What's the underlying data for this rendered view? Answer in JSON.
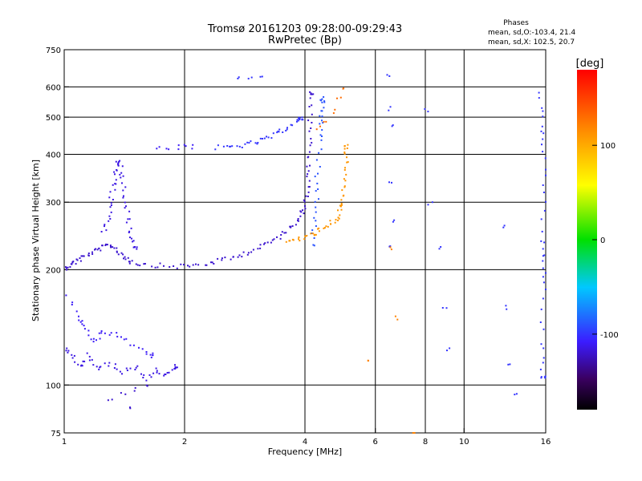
{
  "title": "Tromsø 20161203 09:28:00-09:29:43",
  "subtitle": "RwPretec (Bp)",
  "phases_box": {
    "heading": "Phases",
    "line1": "mean, sd,O:-103.4, 21.4",
    "line2": "mean, sd,X: 102.5, 20.7"
  },
  "colorbar": {
    "unit": "[deg]",
    "range": [
      -180,
      180
    ],
    "ticks": [
      {
        "label": "100",
        "value": 100
      },
      {
        "label": "0",
        "value": 0
      },
      {
        "label": "-100",
        "value": -100
      }
    ]
  },
  "chart_data": {
    "type": "scatter",
    "title": "Tromsø 20161203 09:28:00-09:29:43",
    "subtitle": "RwPretec (Bp)",
    "xlabel": "Frequency [MHz]",
    "ylabel": "Stationary phase Virtual Height [km]",
    "x_scale": "log",
    "y_scale": "log",
    "xlim": [
      1,
      16
    ],
    "ylim": [
      75,
      750
    ],
    "x_ticks": [
      {
        "label": "1",
        "value": 1
      },
      {
        "label": "2",
        "value": 2
      },
      {
        "label": "4",
        "value": 4
      },
      {
        "label": "6",
        "value": 6
      },
      {
        "label": "8",
        "value": 8
      },
      {
        "label": "10",
        "value": 10
      },
      {
        "label": "16",
        "value": 16
      }
    ],
    "y_ticks": [
      {
        "label": "75",
        "value": 75
      },
      {
        "label": "100",
        "value": 100
      },
      {
        "label": "200",
        "value": 200
      },
      {
        "label": "300",
        "value": 300
      },
      {
        "label": "400",
        "value": 400
      },
      {
        "label": "500",
        "value": 500
      },
      {
        "label": "600",
        "value": 600
      },
      {
        "label": "750",
        "value": 750
      }
    ],
    "grid": true,
    "vertical_grid_values": [
      2,
      4,
      6,
      8,
      10,
      16
    ],
    "horizontal_grid_values": [
      100,
      200,
      300,
      400,
      500,
      600
    ],
    "color_by": "phase_deg",
    "traces": [
      {
        "phase": -120,
        "points": [
          [
            1.0,
            203
          ],
          [
            1.03,
            207
          ],
          [
            1.06,
            211
          ],
          [
            1.1,
            216
          ],
          [
            1.15,
            221
          ],
          [
            1.2,
            226
          ],
          [
            1.25,
            230
          ],
          [
            1.3,
            233
          ],
          [
            1.35,
            226
          ],
          [
            1.4,
            218
          ],
          [
            1.45,
            212
          ],
          [
            1.55,
            208
          ],
          [
            1.7,
            206
          ],
          [
            1.9,
            205
          ],
          [
            2.1,
            206
          ],
          [
            2.3,
            209
          ],
          [
            2.5,
            213
          ],
          [
            2.7,
            218
          ],
          [
            2.9,
            224
          ],
          [
            3.1,
            231
          ],
          [
            3.3,
            239
          ],
          [
            3.5,
            249
          ],
          [
            3.7,
            262
          ],
          [
            3.85,
            275
          ],
          [
            3.95,
            290
          ],
          [
            4.02,
            310
          ],
          [
            4.06,
            340
          ],
          [
            4.08,
            380
          ],
          [
            4.1,
            430
          ],
          [
            4.11,
            500
          ],
          [
            4.12,
            580
          ]
        ]
      },
      {
        "phase": -115,
        "points": [
          [
            1.25,
            250
          ],
          [
            1.28,
            275
          ],
          [
            1.3,
            300
          ],
          [
            1.32,
            330
          ],
          [
            1.34,
            360
          ],
          [
            1.36,
            385
          ],
          [
            1.38,
            370
          ],
          [
            1.4,
            340
          ],
          [
            1.42,
            300
          ],
          [
            1.44,
            270
          ],
          [
            1.46,
            245
          ],
          [
            1.5,
            230
          ]
        ]
      },
      {
        "phase": -110,
        "points": [
          [
            1.7,
            420
          ],
          [
            1.8,
            415
          ],
          [
            1.9,
            420
          ],
          [
            2.0,
            425
          ],
          [
            2.1,
            420
          ]
        ]
      },
      {
        "phase": -100,
        "points": [
          [
            2.4,
            418
          ],
          [
            2.6,
            420
          ],
          [
            2.8,
            425
          ],
          [
            3.0,
            432
          ],
          [
            3.2,
            442
          ],
          [
            3.4,
            455
          ],
          [
            3.6,
            472
          ],
          [
            3.8,
            490
          ],
          [
            3.9,
            500
          ]
        ]
      },
      {
        "phase": -100,
        "points": [
          [
            2.7,
            632
          ],
          [
            2.9,
            640
          ],
          [
            3.1,
            648
          ]
        ]
      },
      {
        "phase": -90,
        "points": [
          [
            4.15,
            230
          ],
          [
            4.2,
            260
          ],
          [
            4.25,
            300
          ],
          [
            4.28,
            350
          ],
          [
            4.32,
            420
          ],
          [
            4.35,
            480
          ],
          [
            4.38,
            520
          ],
          [
            4.4,
            560
          ]
        ]
      },
      {
        "phase": 110,
        "points": [
          [
            3.6,
            238
          ],
          [
            3.8,
            241
          ],
          [
            4.0,
            245
          ],
          [
            4.2,
            250
          ],
          [
            4.4,
            256
          ],
          [
            4.6,
            264
          ],
          [
            4.8,
            275
          ],
          [
            4.9,
            290
          ],
          [
            4.98,
            310
          ],
          [
            5.02,
            340
          ],
          [
            5.05,
            380
          ],
          [
            5.07,
            420
          ]
        ]
      },
      {
        "phase": 130,
        "points": [
          [
            4.3,
            470
          ],
          [
            4.5,
            490
          ],
          [
            4.7,
            520
          ],
          [
            4.85,
            560
          ],
          [
            4.95,
            600
          ]
        ]
      },
      {
        "phase": -115,
        "points": [
          [
            1.0,
            125
          ],
          [
            1.05,
            118
          ],
          [
            1.1,
            112
          ],
          [
            1.15,
            120
          ],
          [
            1.2,
            110
          ],
          [
            1.3,
            115
          ],
          [
            1.4,
            108
          ],
          [
            1.5,
            112
          ],
          [
            1.6,
            104
          ],
          [
            1.7,
            110
          ],
          [
            1.8,
            106
          ],
          [
            1.9,
            112
          ]
        ]
      },
      {
        "phase": -110,
        "points": [
          [
            1.02,
            170
          ],
          [
            1.08,
            150
          ],
          [
            1.12,
            140
          ],
          [
            1.18,
            130
          ],
          [
            1.25,
            140
          ],
          [
            1.35,
            135
          ],
          [
            1.5,
            128
          ],
          [
            1.65,
            120
          ]
        ]
      },
      {
        "phase": -120,
        "points": [
          [
            1.3,
            92
          ],
          [
            1.4,
            96
          ],
          [
            1.5,
            98
          ],
          [
            1.6,
            100
          ],
          [
            1.45,
            88
          ]
        ]
      },
      {
        "phase": -100,
        "points": [
          [
            6.4,
            640
          ],
          [
            6.5,
            530
          ],
          [
            6.6,
            480
          ],
          [
            6.5,
            340
          ],
          [
            6.6,
            270
          ],
          [
            6.55,
            230
          ]
        ]
      },
      {
        "phase": -100,
        "points": [
          [
            8.0,
            520
          ],
          [
            8.2,
            300
          ],
          [
            8.6,
            230
          ],
          [
            8.9,
            160
          ],
          [
            9.1,
            125
          ]
        ]
      },
      {
        "phase": -100,
        "points": [
          [
            12.5,
            260
          ],
          [
            12.8,
            160
          ],
          [
            13.0,
            115
          ],
          [
            13.5,
            95
          ]
        ]
      },
      {
        "phase": -100,
        "points": [
          [
            15.5,
            580
          ],
          [
            15.6,
            480
          ],
          [
            15.7,
            410
          ],
          [
            15.8,
            320
          ],
          [
            15.6,
            240
          ],
          [
            15.7,
            210
          ],
          [
            15.8,
            180
          ],
          [
            15.5,
            130
          ],
          [
            15.7,
            105
          ]
        ]
      },
      {
        "phase": 120,
        "points": [
          [
            6.6,
            230
          ],
          [
            6.7,
            150
          ],
          [
            5.8,
            115
          ],
          [
            7.5,
            75
          ]
        ]
      }
    ]
  }
}
